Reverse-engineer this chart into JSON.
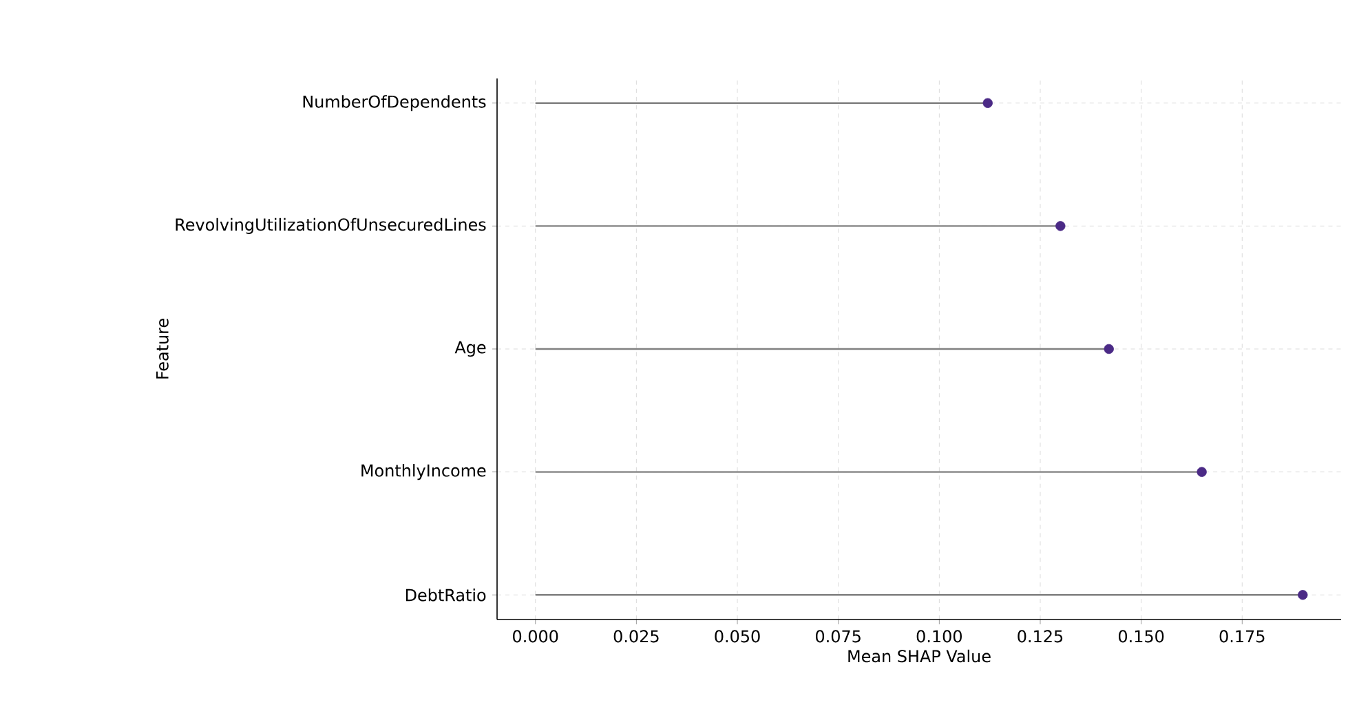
{
  "chart_data": {
    "type": "lollipop",
    "orientation": "horizontal",
    "xlabel": "Mean SHAP Value",
    "ylabel": "Feature",
    "categories": [
      "NumberOfDependents",
      "RevolvingUtilizationOfUnsecuredLines",
      "Age",
      "MonthlyIncome",
      "DebtRatio"
    ],
    "values": [
      0.112,
      0.13,
      0.142,
      0.165,
      0.19
    ],
    "color": "#4b2a86",
    "xlim": [
      -0.0095,
      0.1995
    ],
    "xticks": [
      {
        "value": 0,
        "label": "0.000"
      },
      {
        "value": 0.025,
        "label": "0.025"
      },
      {
        "value": 0.05,
        "label": "0.050"
      },
      {
        "value": 0.075,
        "label": "0.075"
      },
      {
        "value": 0.1,
        "label": "0.100"
      },
      {
        "value": 0.125,
        "label": "0.125"
      },
      {
        "value": 0.15,
        "label": "0.150"
      },
      {
        "value": 0.175,
        "label": "0.175"
      }
    ],
    "grid": true,
    "marker": "circle"
  }
}
